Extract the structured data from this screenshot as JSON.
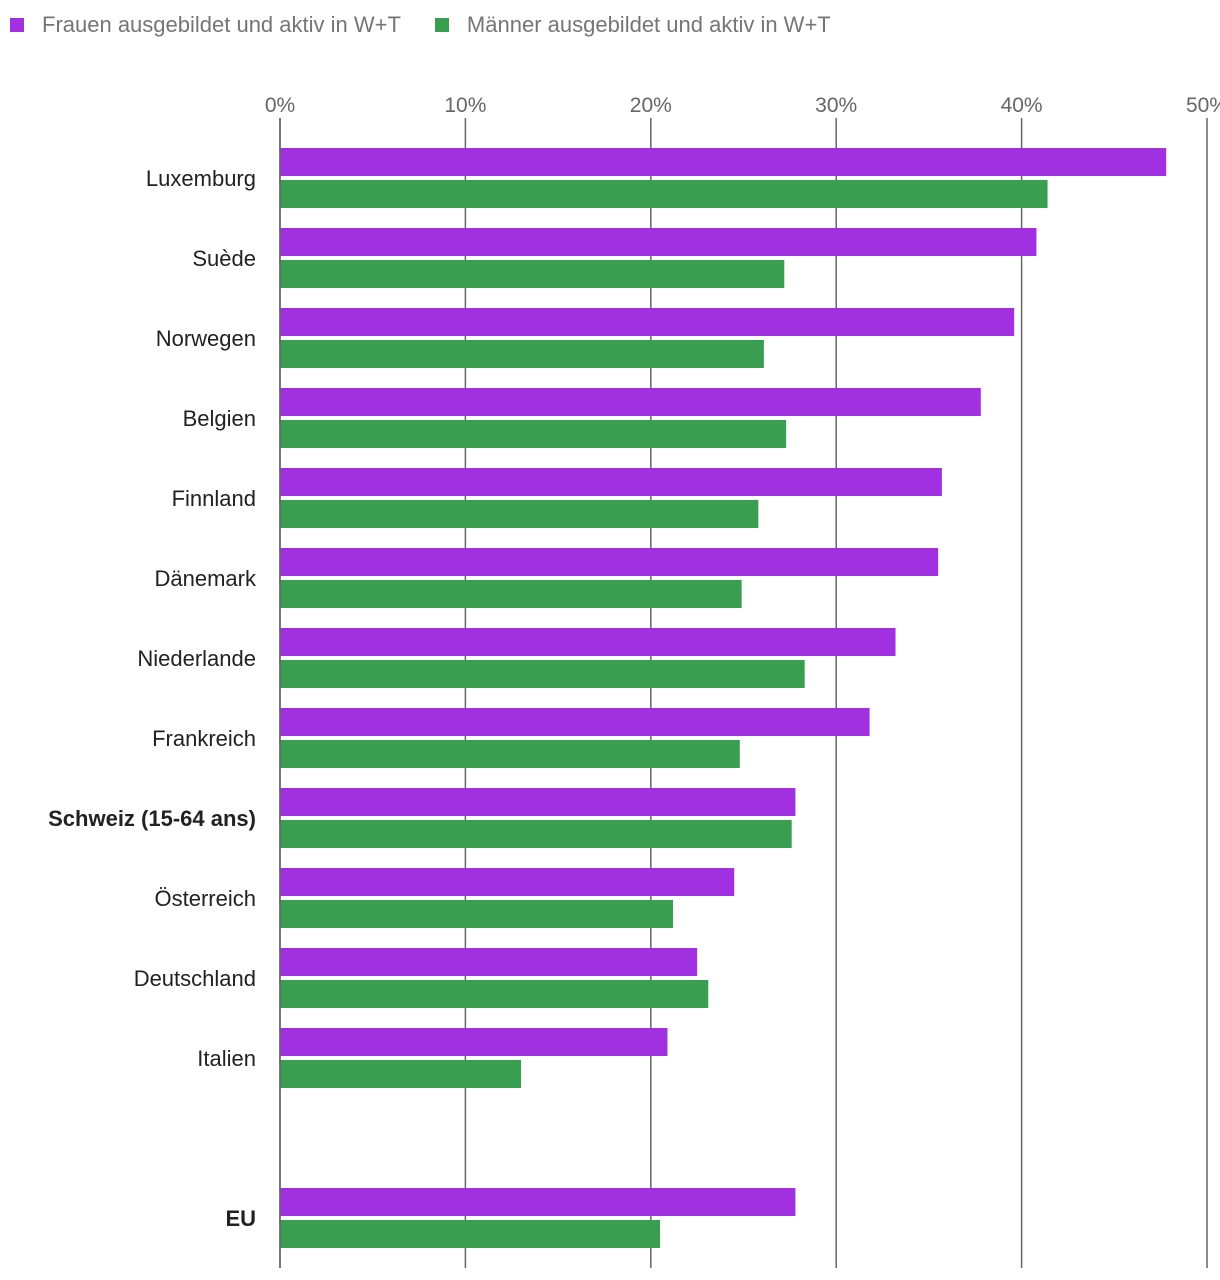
{
  "colors": {
    "women": "#a030e0",
    "men": "#3a9e50",
    "grid": "#666666"
  },
  "legend": [
    {
      "label": "Frauen ausgebildet und aktiv in W+T",
      "color": "#a030e0"
    },
    {
      "label": "Männer ausgebildet und aktiv in W+T",
      "color": "#3a9e50"
    }
  ],
  "chart_data": {
    "type": "bar",
    "orientation": "horizontal",
    "title": "",
    "xlabel": "",
    "ylabel": "",
    "xlim": [
      0,
      50
    ],
    "ticks": [
      "0%",
      "10%",
      "20%",
      "30%",
      "40%",
      "50%"
    ],
    "tick_values": [
      0,
      10,
      20,
      30,
      40,
      50
    ],
    "legend_position": "top-left",
    "categories": [
      "Luxemburg",
      "Suède",
      "Norwegen",
      "Belgien",
      "Finnland",
      "Dänemark",
      "Niederlande",
      "Frankreich",
      "Schweiz (15-64 ans)",
      "Österreich",
      "Deutschland",
      "Italien",
      "",
      "EU"
    ],
    "bold_categories": [
      "Schweiz (15-64 ans)",
      "EU"
    ],
    "series": [
      {
        "name": "Frauen ausgebildet und aktiv in W+T",
        "color": "#a030e0",
        "values": [
          47.8,
          40.8,
          39.6,
          37.8,
          35.7,
          35.5,
          33.2,
          31.8,
          27.8,
          24.5,
          22.5,
          20.9,
          null,
          27.8
        ]
      },
      {
        "name": "Männer ausgebildet und aktiv in W+T",
        "color": "#3a9e50",
        "values": [
          41.4,
          27.2,
          26.1,
          27.3,
          25.8,
          24.9,
          28.3,
          24.8,
          27.6,
          21.2,
          23.1,
          13.0,
          null,
          20.5
        ]
      }
    ]
  }
}
